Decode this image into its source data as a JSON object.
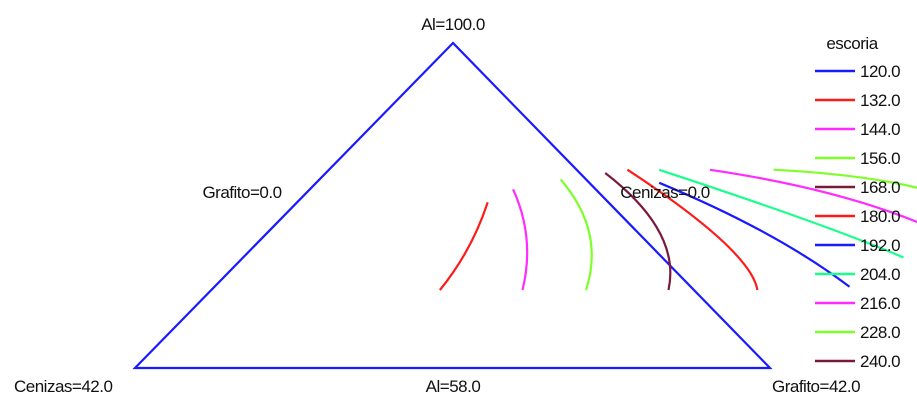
{
  "chart_data": {
    "type": "ternary-contour",
    "vertex_labels": {
      "top": "Al=100.0",
      "bottom_left": "Cenizas=42.0",
      "bottom_right": "Grafito=42.0"
    },
    "edge_labels": {
      "left": "Grafito=0.0",
      "right": "Cenizas=0.0",
      "bottom": "Al=58.0"
    },
    "frame_color": "#1a1aff",
    "legend": {
      "title": "escoria",
      "placement": "right",
      "entries": [
        {
          "value": "120.0",
          "color": "#1a1aff"
        },
        {
          "value": "132.0",
          "color": "#ff1a1a"
        },
        {
          "value": "144.0",
          "color": "#ff2bff"
        },
        {
          "value": "156.0",
          "color": "#7fff2a"
        },
        {
          "value": "168.0",
          "color": "#7a1a3a"
        },
        {
          "value": "180.0",
          "color": "#ff1a1a"
        },
        {
          "value": "192.0",
          "color": "#1a1aff"
        },
        {
          "value": "204.0",
          "color": "#1aff8c"
        },
        {
          "value": "216.0",
          "color": "#ff2bff"
        },
        {
          "value": "228.0",
          "color": "#7fff2a"
        },
        {
          "value": "240.0",
          "color": "#7a1a3a"
        }
      ]
    },
    "contours": [
      {
        "level": "132.0",
        "color": "#ff1a1a",
        "points": [
          [
            0.24,
            0.4,
            0.36
          ],
          [
            0.36,
            0.29,
            0.35
          ],
          [
            0.51,
            0.19,
            0.3
          ]
        ]
      },
      {
        "level": "144.0",
        "color": "#ff2bff",
        "points": [
          [
            0.24,
            0.27,
            0.49
          ],
          [
            0.4,
            0.17,
            0.43
          ],
          [
            0.55,
            0.13,
            0.32
          ]
        ]
      },
      {
        "level": "156.0",
        "color": "#7fff2a",
        "points": [
          [
            0.24,
            0.17,
            0.59
          ],
          [
            0.42,
            0.05,
            0.53
          ],
          [
            0.58,
            0.04,
            0.38
          ]
        ]
      },
      {
        "level": "168.0",
        "color": "#7a1a3a",
        "points": [
          [
            0.24,
            0.04,
            0.72
          ],
          [
            0.42,
            -0.07,
            0.65
          ],
          [
            0.6,
            -0.04,
            0.44
          ]
        ]
      },
      {
        "level": "180.0",
        "color": "#ff1a1a",
        "points": [
          [
            0.24,
            -0.1,
            0.86
          ],
          [
            0.36,
            -0.15,
            0.79
          ],
          [
            0.61,
            -0.08,
            0.47
          ]
        ]
      },
      {
        "level": "192.0",
        "color": "#1a1aff",
        "points": [
          [
            0.25,
            -0.25,
            1.0
          ],
          [
            0.42,
            -0.22,
            0.8
          ],
          [
            0.57,
            -0.11,
            0.54
          ]
        ]
      },
      {
        "level": "204.0",
        "color": "#1aff8c",
        "points": [
          [
            0.34,
            -0.38,
            1.04
          ],
          [
            0.44,
            -0.31,
            0.87
          ],
          [
            0.61,
            -0.13,
            0.52
          ]
        ]
      },
      {
        "level": "216.0",
        "color": "#ff2bff",
        "points": [
          [
            0.43,
            -0.47,
            1.04
          ],
          [
            0.55,
            -0.39,
            0.84
          ],
          [
            0.61,
            -0.21,
            0.6
          ]
        ]
      },
      {
        "level": "228.0",
        "color": "#7fff2a",
        "points": [
          [
            0.51,
            -0.56,
            1.05
          ],
          [
            0.59,
            -0.5,
            0.91
          ],
          [
            0.61,
            -0.31,
            0.7
          ]
        ]
      }
    ]
  }
}
